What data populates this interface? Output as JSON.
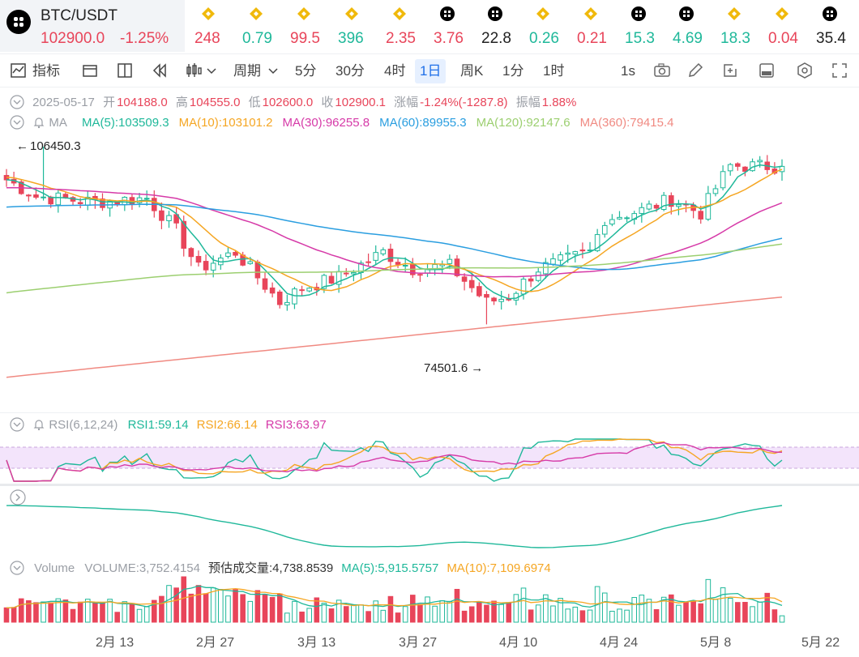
{
  "pair": {
    "name": "BTC/USDT",
    "price": "102900.0",
    "change": "-1.25%"
  },
  "ticker": [
    {
      "val": "248",
      "color": "#e8455a",
      "icon": "bnb-icon"
    },
    {
      "val": "0.79",
      "color": "#1fb89a",
      "icon": "bnb-icon"
    },
    {
      "val": "99.5",
      "color": "#e8455a",
      "icon": "bnb-icon"
    },
    {
      "val": "396",
      "color": "#1fb89a",
      "icon": "bnb-icon"
    },
    {
      "val": "2.35",
      "color": "#e8455a",
      "icon": "bnb-icon"
    },
    {
      "val": "3.76",
      "color": "#e8455a",
      "icon": "cross-icon"
    },
    {
      "val": "22.8",
      "color": "#222222",
      "icon": "cross-icon"
    },
    {
      "val": "0.26",
      "color": "#1fb89a",
      "icon": "bnb-icon"
    },
    {
      "val": "0.21",
      "color": "#e8455a",
      "icon": "bnb-icon"
    },
    {
      "val": "15.3",
      "color": "#1fb89a",
      "icon": "cross-icon"
    },
    {
      "val": "4.69",
      "color": "#1fb89a",
      "icon": "cross-icon"
    },
    {
      "val": "18.3",
      "color": "#1fb89a",
      "icon": "bnb-icon"
    },
    {
      "val": "0.04",
      "color": "#e8455a",
      "icon": "bnb-icon"
    },
    {
      "val": "35.4",
      "color": "#222222",
      "icon": "cross-icon"
    }
  ],
  "toolbar": {
    "indicators": "指标",
    "period": "周期",
    "intervals": [
      "5分",
      "30分",
      "4时",
      "1日",
      "周K",
      "1分",
      "1时"
    ],
    "active_interval": "1日",
    "speed": "1s"
  },
  "ohlc": {
    "date": "2025-05-17",
    "open_label": "开",
    "open": "104188.0",
    "high_label": "高",
    "high": "104555.0",
    "low_label": "低",
    "low": "102600.0",
    "close_label": "收",
    "close": "102900.1",
    "change_label": "涨幅",
    "change": "-1.24%(-1287.8)",
    "amp_label": "振幅",
    "amp": "1.88%"
  },
  "ma_legend": {
    "label": "MA",
    "items": [
      {
        "text": "MA(5):103509.3",
        "color": "#1fb89a"
      },
      {
        "text": "MA(10):103101.2",
        "color": "#f5a623"
      },
      {
        "text": "MA(30):96255.8",
        "color": "#d63aa8"
      },
      {
        "text": "MA(60):89955.3",
        "color": "#2a9ee0"
      },
      {
        "text": "MA(120):92147.6",
        "color": "#9ccf70"
      },
      {
        "text": "MA(360):79415.4",
        "color": "#f08a82"
      }
    ]
  },
  "rsi_legend": {
    "label": "RSI(6,12,24)",
    "items": [
      {
        "text": "RSI1:59.14",
        "color": "#1fb89a"
      },
      {
        "text": "RSI2:66.14",
        "color": "#f5a623"
      },
      {
        "text": "RSI3:63.97",
        "color": "#d63aa8"
      }
    ]
  },
  "volume_legend": {
    "label": "Volume",
    "items": [
      {
        "text": "VOLUME:3,752.4154",
        "color": "#9a9ea5"
      },
      {
        "text": "预估成交量:4,738.8539",
        "color": "#333333"
      },
      {
        "text": "MA(5):5,915.5757",
        "color": "#1fb89a"
      },
      {
        "text": "MA(10):7,109.6974",
        "color": "#f5a623"
      }
    ]
  },
  "annotations": {
    "high": "106450.3",
    "low": "74501.6"
  },
  "x_labels": [
    "2月 13",
    "2月 27",
    "3月 13",
    "3月 27",
    "4月 10",
    "4月 24",
    "5月 8",
    "5月 22"
  ],
  "chart_data": {
    "type": "candlestick",
    "title": "BTC/USDT 1日",
    "x": [
      "2月 13",
      "2月 27",
      "3月 13",
      "3月 27",
      "4月 10",
      "4月 24",
      "5月 8",
      "5月 22"
    ],
    "price_anchors": [
      {
        "date": "02-01",
        "close": 100500
      },
      {
        "date": "02-05",
        "close": 97500
      },
      {
        "date": "02-13",
        "close": 96500
      },
      {
        "date": "02-20",
        "close": 97200
      },
      {
        "date": "02-24",
        "close": 91500
      },
      {
        "date": "02-27",
        "close": 84500
      },
      {
        "date": "03-04",
        "close": 87500
      },
      {
        "date": "03-10",
        "close": 78500
      },
      {
        "date": "03-13",
        "close": 81000
      },
      {
        "date": "03-18",
        "close": 83000
      },
      {
        "date": "03-24",
        "close": 87500
      },
      {
        "date": "03-28",
        "close": 84500
      },
      {
        "date": "04-02",
        "close": 85000
      },
      {
        "date": "04-07",
        "close": 78500
      },
      {
        "date": "04-10",
        "close": 79500
      },
      {
        "date": "04-14",
        "close": 84500
      },
      {
        "date": "04-21",
        "close": 87500
      },
      {
        "date": "04-23",
        "close": 93500
      },
      {
        "date": "04-28",
        "close": 95000
      },
      {
        "date": "05-02",
        "close": 97000
      },
      {
        "date": "05-06",
        "close": 94500
      },
      {
        "date": "05-08",
        "close": 99000
      },
      {
        "date": "05-10",
        "close": 103000
      },
      {
        "date": "05-17",
        "close": 102900
      }
    ],
    "high": 106450.3,
    "low": 74501.6,
    "ma_last": {
      "MA5": 103509.3,
      "MA10": 103101.2,
      "MA30": 96255.8,
      "MA60": 89955.3,
      "MA120": 92147.6,
      "MA360": 79415.4
    },
    "rsi_last": {
      "RSI1": 59.14,
      "RSI2": 66.14,
      "RSI3": 63.97
    },
    "volume_last": 3752.4154,
    "volume_ma": {
      "MA5": 5915.5757,
      "MA10": 7109.6974
    },
    "colors": {
      "up": "#1fb89a",
      "down": "#e8455a"
    }
  }
}
